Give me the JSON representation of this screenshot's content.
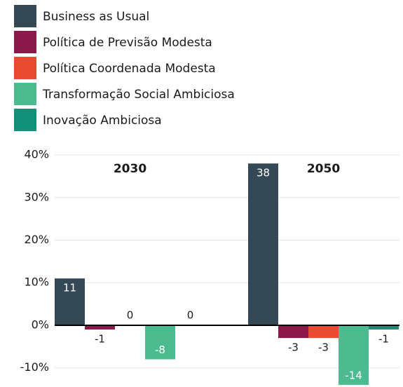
{
  "chart_data": {
    "type": "bar",
    "categories": [
      "2030",
      "2050"
    ],
    "series": [
      {
        "name": "Business as Usual",
        "color": "#344955",
        "values": [
          11,
          38
        ]
      },
      {
        "name": "Política de Previsão Modesta",
        "color": "#8b1a4a",
        "values": [
          -1,
          -3
        ]
      },
      {
        "name": "Política Coordenada Modesta",
        "color": "#e84a32",
        "values": [
          0,
          -3
        ]
      },
      {
        "name": "Transformação Social Ambiciosa",
        "color": "#4cbb8f",
        "values": [
          -8,
          -14
        ]
      },
      {
        "name": "Inovação Ambiciosa",
        "color": "#12917a",
        "values": [
          0,
          -1
        ]
      }
    ],
    "ylim": [
      -14.5,
      40.5
    ],
    "yticks": [
      {
        "value": -10,
        "label": "-10%"
      },
      {
        "value": 0,
        "label": "0%"
      },
      {
        "value": 10,
        "label": "10%"
      },
      {
        "value": 20,
        "label": "20%"
      },
      {
        "value": 30,
        "label": "30%"
      },
      {
        "value": 40,
        "label": "40%"
      }
    ],
    "grid": true
  }
}
